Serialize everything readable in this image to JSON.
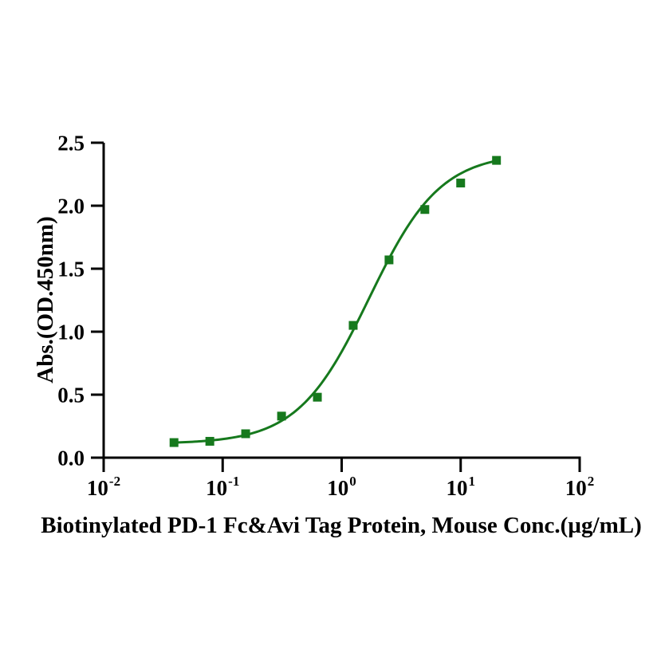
{
  "figure": {
    "background_color": "#ffffff",
    "axis_color": "#000000",
    "text_color": "#000000"
  },
  "chart_data": {
    "type": "scatter",
    "title": "",
    "xlabel": "Biotinylated PD-1 Fc&Avi Tag Protein, Mouse  Conc.(µg/mL)",
    "ylabel": "Abs.(OD.450nm)",
    "x_scale": "log10",
    "x_log_range": [
      -2,
      2
    ],
    "ylim": [
      0,
      2.5
    ],
    "grid": false,
    "legend": false,
    "x_ticks": [
      {
        "value": 0.01,
        "mantissa": "10",
        "exponent": "-2"
      },
      {
        "value": 0.1,
        "mantissa": "10",
        "exponent": "-1"
      },
      {
        "value": 1,
        "mantissa": "10",
        "exponent": "0"
      },
      {
        "value": 10,
        "mantissa": "10",
        "exponent": "1"
      },
      {
        "value": 100,
        "mantissa": "10",
        "exponent": "2"
      }
    ],
    "y_ticks": [
      {
        "value": 0.0,
        "label": "0.0"
      },
      {
        "value": 0.5,
        "label": "0.5"
      },
      {
        "value": 1.0,
        "label": "1.0"
      },
      {
        "value": 1.5,
        "label": "1.5"
      },
      {
        "value": 2.0,
        "label": "2.0"
      },
      {
        "value": 2.5,
        "label": "2.5"
      }
    ],
    "series": [
      {
        "name": "Biotinylated PD-1 Fc&Avi Tag Protein, Mouse",
        "marker": "square",
        "marker_size": 11,
        "line_width": 3,
        "color": "#16791d",
        "points": [
          {
            "x": 0.039,
            "y": 0.12
          },
          {
            "x": 0.078,
            "y": 0.13
          },
          {
            "x": 0.156,
            "y": 0.19
          },
          {
            "x": 0.3125,
            "y": 0.33
          },
          {
            "x": 0.625,
            "y": 0.48
          },
          {
            "x": 1.25,
            "y": 1.05
          },
          {
            "x": 2.5,
            "y": 1.57
          },
          {
            "x": 5,
            "y": 1.97
          },
          {
            "x": 10,
            "y": 2.18
          },
          {
            "x": 20,
            "y": 2.36
          }
        ],
        "fit": {
          "model": "4PL",
          "bottom": 0.11,
          "top": 2.42,
          "ec50": 1.7,
          "hill": 1.45
        }
      }
    ]
  }
}
